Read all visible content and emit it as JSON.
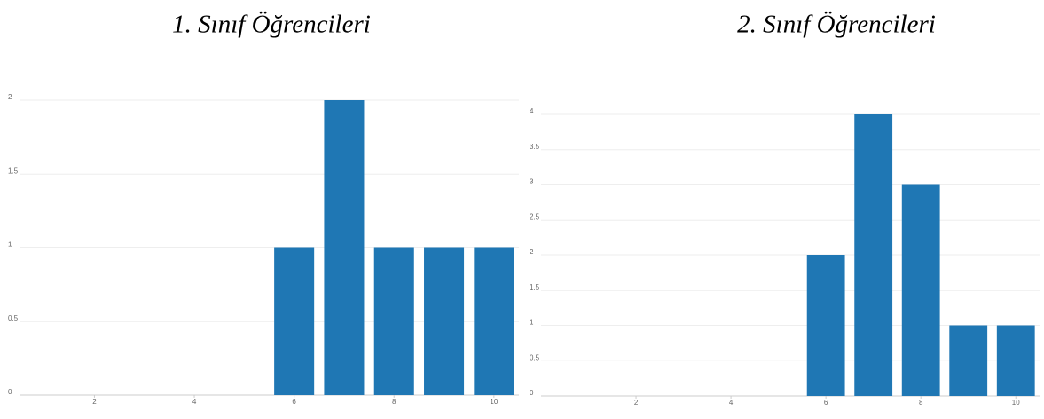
{
  "chart_data": [
    {
      "type": "bar",
      "title": "1. Sınıf Öğrencileri",
      "x": [
        6,
        7,
        8,
        9,
        10
      ],
      "values": [
        1,
        2,
        1,
        1,
        1
      ],
      "color": "#1f77b4",
      "xlim": [
        0.5,
        10.5
      ],
      "xticks": [
        2,
        4,
        6,
        8,
        10
      ],
      "ylim": [
        0,
        2
      ],
      "yticks": [
        0,
        0.5,
        1,
        1.5,
        2
      ],
      "grid": true
    },
    {
      "type": "bar",
      "title": "2. Sınıf Öğrencileri",
      "x": [
        6,
        7,
        8,
        9,
        10
      ],
      "values": [
        2,
        4,
        3,
        1,
        1
      ],
      "color": "#1f77b4",
      "xlim": [
        0,
        10.5
      ],
      "xticks": [
        2,
        4,
        6,
        8,
        10
      ],
      "ylim": [
        0,
        4
      ],
      "yticks": [
        0,
        0.5,
        1,
        1.5,
        2,
        2.5,
        3,
        3.5,
        4
      ],
      "grid": true
    }
  ]
}
